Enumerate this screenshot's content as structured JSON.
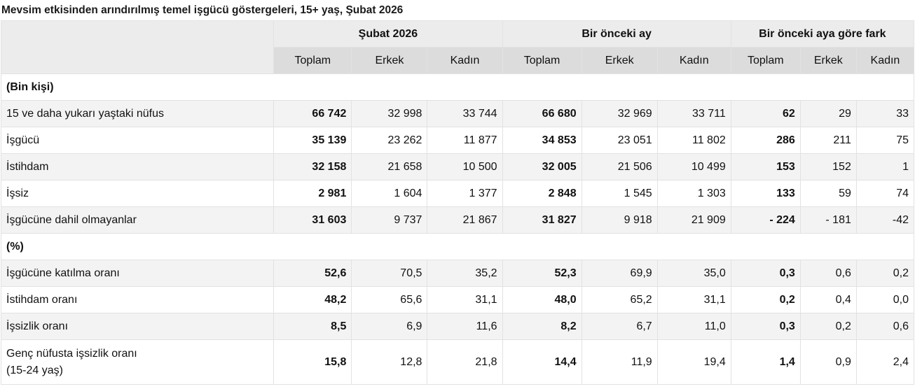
{
  "title": "Mevsim etkisinden arındırılmış temel işgücü göstergeleri, 15+ yaş, Şubat 2026",
  "groups": [
    "Şubat 2026",
    "Bir önceki ay",
    "Bir önceki aya göre fark"
  ],
  "subheaders": [
    "Toplam",
    "Erkek",
    "Kadın",
    "Toplam",
    "Erkek",
    "Kadın",
    "Toplam",
    "Erkek",
    "Kadın"
  ],
  "sections": {
    "bin_kisi": "(Bin kişi)",
    "yuzde": "(%)"
  },
  "rows": [
    {
      "label": "15 ve daha yukarı yaştaki nüfus",
      "values": [
        "66 742",
        "32 998",
        "33 744",
        "66 680",
        "32 969",
        "33 711",
        "62",
        "29",
        "33"
      ]
    },
    {
      "label": "İşgücü",
      "values": [
        "35 139",
        "23 262",
        "11 877",
        "34 853",
        "23 051",
        "11 802",
        "286",
        "211",
        "75"
      ]
    },
    {
      "label": "İstihdam",
      "values": [
        "32 158",
        "21 658",
        "10 500",
        "32 005",
        "21 506",
        "10 499",
        "153",
        "152",
        "1"
      ]
    },
    {
      "label": "İşsiz",
      "values": [
        "2 981",
        "1 604",
        "1 377",
        "2 848",
        "1 545",
        "1 303",
        "133",
        "59",
        "74"
      ]
    },
    {
      "label": "İşgücüne dahil olmayanlar",
      "values": [
        "31 603",
        "9 737",
        "21 867",
        "31 827",
        "9 918",
        "21 909",
        "- 224",
        "- 181",
        "-42"
      ]
    },
    {
      "label": "İşgücüne katılma oranı",
      "values": [
        "52,6",
        "70,5",
        "35,2",
        "52,3",
        "69,9",
        "35,0",
        "0,3",
        "0,6",
        "0,2"
      ]
    },
    {
      "label": "İstihdam oranı",
      "values": [
        "48,2",
        "65,6",
        "31,1",
        "48,0",
        "65,2",
        "31,1",
        "0,2",
        "0,4",
        "0,0"
      ]
    },
    {
      "label": "İşsizlik oranı",
      "values": [
        "8,5",
        "6,9",
        "11,6",
        "8,2",
        "6,7",
        "11,0",
        "0,3",
        "0,2",
        "0,6"
      ]
    },
    {
      "label_line1": "Genç nüfusta işsizlik oranı",
      "label_line2": "(15-24 yaş)",
      "values": [
        "15,8",
        "12,8",
        "21,8",
        "14,4",
        "11,9",
        "19,4",
        "1,4",
        "0,9",
        "2,4"
      ]
    }
  ]
}
